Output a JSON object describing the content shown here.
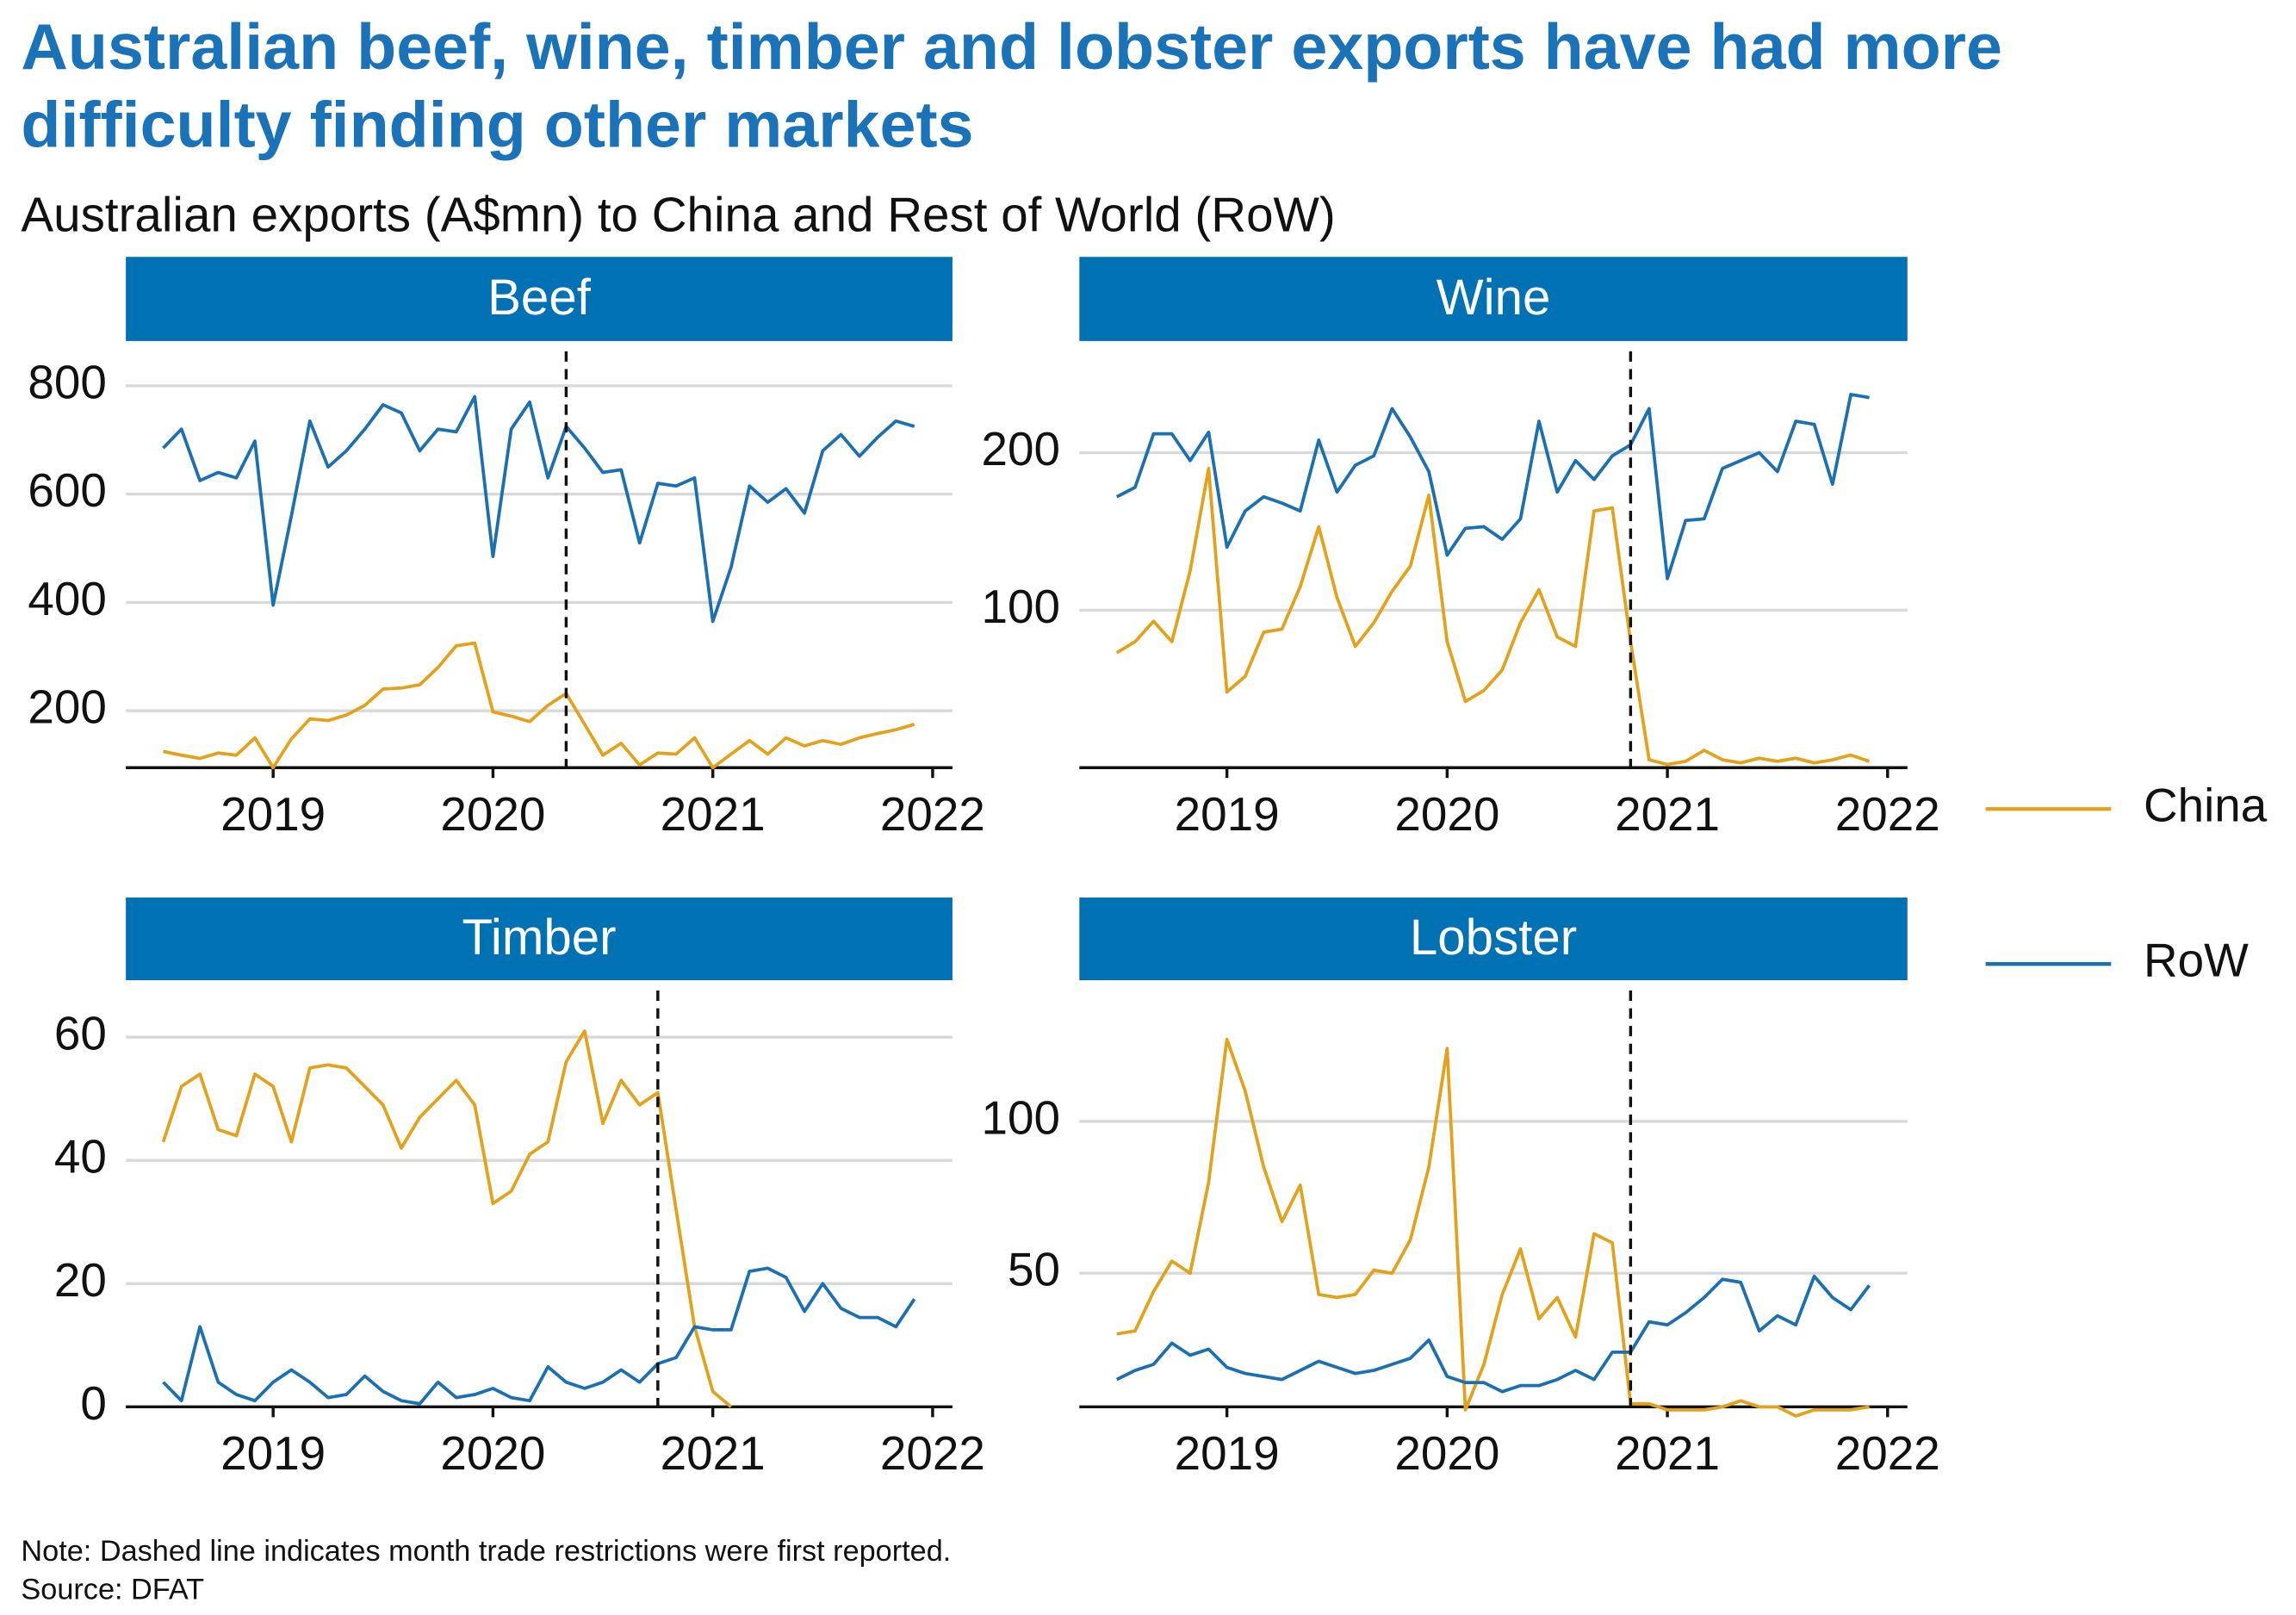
{
  "title": "Australian beef, wine, timber and lobster exports have had more difficulty finding other markets",
  "title_lines": [
    "Australian beef, wine, timber and lobster exports have had more",
    "difficulty finding other markets"
  ],
  "subtitle": "Australian exports (A$mn) to China and Rest of World (RoW)",
  "note": "Note: Dashed line indicates month trade restrictions were first reported.",
  "source": "Source: DFAT",
  "chart_data": [
    {
      "type": "line",
      "title": "Beef",
      "x": [
        2018.5,
        2018.583,
        2018.667,
        2018.75,
        2018.833,
        2018.917,
        2019,
        2019.083,
        2019.167,
        2019.25,
        2019.333,
        2019.417,
        2019.5,
        2019.583,
        2019.667,
        2019.75,
        2019.833,
        2019.917,
        2020,
        2020.083,
        2020.167,
        2020.25,
        2020.333,
        2020.417,
        2020.5,
        2020.583,
        2020.667,
        2020.75,
        2020.833,
        2020.917,
        2021,
        2021.083,
        2021.167,
        2021.25,
        2021.333,
        2021.417,
        2021.5,
        2021.583,
        2021.667,
        2021.75,
        2021.833,
        2021.917
      ],
      "xlim": [
        2018.33,
        2022.09
      ],
      "xticks": [
        2019,
        2020,
        2021,
        2022
      ],
      "ylim": [
        95,
        880
      ],
      "yticks": [
        200,
        400,
        600,
        800
      ],
      "grid": true,
      "restriction_x": 2020.333,
      "series": [
        {
          "name": "China",
          "color": "#e3a21a",
          "values": [
            125,
            118,
            112,
            122,
            118,
            150,
            95,
            148,
            185,
            182,
            192,
            210,
            240,
            242,
            248,
            280,
            320,
            325,
            198,
            190,
            180,
            210,
            232,
            175,
            118,
            140,
            100,
            122,
            120,
            150,
            95,
            120,
            145,
            120,
            150,
            135,
            145,
            138,
            150,
            158,
            165,
            175
          ]
        },
        {
          "name": "RoW",
          "color": "#1a70b0",
          "values": [
            685,
            720,
            625,
            640,
            630,
            698,
            395,
            560,
            735,
            650,
            680,
            720,
            765,
            750,
            680,
            720,
            715,
            780,
            485,
            720,
            770,
            630,
            725,
            685,
            640,
            645,
            510,
            620,
            615,
            630,
            365,
            465,
            615,
            585,
            610,
            565,
            680,
            710,
            670,
            705,
            735,
            725
          ]
        }
      ]
    },
    {
      "type": "line",
      "title": "Wine",
      "x": [
        2018.5,
        2018.583,
        2018.667,
        2018.75,
        2018.833,
        2018.917,
        2019,
        2019.083,
        2019.167,
        2019.25,
        2019.333,
        2019.417,
        2019.5,
        2019.583,
        2019.667,
        2019.75,
        2019.833,
        2019.917,
        2020,
        2020.083,
        2020.167,
        2020.25,
        2020.333,
        2020.417,
        2020.5,
        2020.583,
        2020.667,
        2020.75,
        2020.833,
        2020.917,
        2021,
        2021.083,
        2021.167,
        2021.25,
        2021.333,
        2021.417,
        2021.5,
        2021.583,
        2021.667,
        2021.75,
        2021.833,
        2021.917
      ],
      "xlim": [
        2018.33,
        2022.09
      ],
      "xticks": [
        2019,
        2020,
        2021,
        2022
      ],
      "ylim": [
        0,
        270
      ],
      "yticks": [
        100,
        200
      ],
      "grid": true,
      "restriction_x": 2020.833,
      "series": [
        {
          "name": "China",
          "color": "#e3a21a",
          "values": [
            73,
            80,
            93,
            80,
            125,
            190,
            48,
            58,
            86,
            88,
            115,
            153,
            108,
            77,
            92,
            112,
            128,
            173,
            80,
            42,
            49,
            62,
            92,
            113,
            83,
            77,
            163,
            165,
            80,
            5,
            2,
            4,
            11,
            5,
            3,
            6,
            4,
            6,
            3,
            5,
            8,
            4
          ]
        },
        {
          "name": "RoW",
          "color": "#1a70b0",
          "values": [
            172,
            178,
            212,
            212,
            195,
            213,
            140,
            163,
            172,
            168,
            163,
            208,
            175,
            192,
            198,
            228,
            210,
            188,
            135,
            152,
            153,
            145,
            158,
            220,
            175,
            195,
            183,
            198,
            205,
            228,
            120,
            157,
            158,
            190,
            195,
            200,
            188,
            220,
            218,
            180,
            237,
            235
          ]
        }
      ]
    },
    {
      "type": "line",
      "title": "Timber",
      "x": [
        2018.5,
        2018.583,
        2018.667,
        2018.75,
        2018.833,
        2018.917,
        2019,
        2019.083,
        2019.167,
        2019.25,
        2019.333,
        2019.417,
        2019.5,
        2019.583,
        2019.667,
        2019.75,
        2019.833,
        2019.917,
        2020,
        2020.083,
        2020.167,
        2020.25,
        2020.333,
        2020.417,
        2020.5,
        2020.583,
        2020.667,
        2020.75,
        2020.833,
        2020.917,
        2021,
        2021.083,
        2021.167,
        2021.25,
        2021.333,
        2021.417,
        2021.5,
        2021.583,
        2021.667,
        2021.75,
        2021.833,
        2021.917
      ],
      "xlim": [
        2018.33,
        2022.09
      ],
      "xticks": [
        2019,
        2020,
        2021,
        2022
      ],
      "ylim": [
        0,
        69
      ],
      "yticks": [
        0,
        20,
        40,
        60
      ],
      "grid": true,
      "restriction_x": 2020.75,
      "series": [
        {
          "name": "China",
          "color": "#e3a21a",
          "values": [
            43,
            52,
            54,
            45,
            44,
            54,
            52,
            43,
            55,
            55.5,
            55,
            52,
            49,
            42,
            47,
            50,
            53,
            49,
            33,
            35,
            41,
            43,
            56,
            61,
            46,
            53,
            49,
            51,
            32,
            13,
            2.5,
            0,
            null,
            null,
            null,
            null,
            null,
            null,
            null,
            null,
            null,
            null
          ]
        },
        {
          "name": "RoW",
          "color": "#1a70b0",
          "values": [
            4,
            1,
            13,
            4,
            2,
            1,
            4,
            6,
            4,
            1.5,
            2,
            5,
            2.5,
            1,
            0.5,
            4,
            1.5,
            2,
            3,
            1.5,
            1,
            6.5,
            4,
            3,
            4,
            6,
            4,
            7,
            8,
            13,
            12.5,
            12.5,
            22,
            22.5,
            21,
            15.5,
            20,
            16,
            14.5,
            14.5,
            13,
            17.5
          ]
        }
      ]
    },
    {
      "type": "line",
      "title": "Lobster",
      "x": [
        2018.5,
        2018.583,
        2018.667,
        2018.75,
        2018.833,
        2018.917,
        2019,
        2019.083,
        2019.167,
        2019.25,
        2019.333,
        2019.417,
        2019.5,
        2019.583,
        2019.667,
        2019.75,
        2019.833,
        2019.917,
        2020,
        2020.083,
        2020.167,
        2020.25,
        2020.333,
        2020.417,
        2020.5,
        2020.583,
        2020.667,
        2020.75,
        2020.833,
        2020.917,
        2021,
        2021.083,
        2021.167,
        2021.25,
        2021.333,
        2021.417,
        2021.5,
        2021.583,
        2021.667,
        2021.75,
        2021.833,
        2021.917
      ],
      "xlim": [
        2018.33,
        2022.09
      ],
      "xticks": [
        2019,
        2020,
        2021,
        2022
      ],
      "ylim": [
        6,
        146
      ],
      "yticks": [
        50,
        100
      ],
      "grid": true,
      "restriction_x": 2020.833,
      "series": [
        {
          "name": "China",
          "color": "#e3a21a",
          "values": [
            30,
            31,
            44,
            54,
            50,
            80,
            127,
            110,
            85,
            67,
            79,
            43,
            42,
            43,
            51,
            50,
            61,
            85,
            124,
            5,
            20,
            43,
            58,
            35,
            42,
            29,
            63,
            60,
            7,
            7,
            5,
            5,
            5,
            6,
            8,
            6,
            6,
            3,
            5,
            5,
            5,
            6
          ]
        },
        {
          "name": "RoW",
          "color": "#1a70b0",
          "values": [
            15,
            18,
            20,
            27,
            23,
            25,
            19,
            17,
            16,
            15,
            18,
            21,
            19,
            17,
            18,
            20,
            22,
            28,
            16,
            14,
            14,
            11,
            13,
            13,
            15,
            18,
            15,
            24,
            24,
            34,
            33,
            37,
            42,
            48,
            47,
            31,
            36,
            33,
            49,
            42,
            38,
            46
          ]
        }
      ]
    }
  ]
}
